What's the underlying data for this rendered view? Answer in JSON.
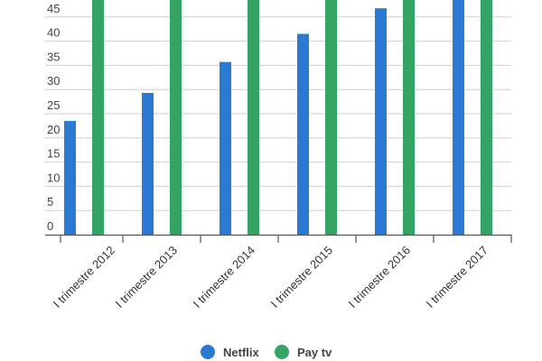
{
  "chart_data": {
    "type": "bar",
    "categories": [
      "I trimestre 2012",
      "I trimestre 2013",
      "I trimestre 2014",
      "I trimestre 2015",
      "I trimestre 2016",
      "I trimestre 2017"
    ],
    "series": [
      {
        "name": "Netflix",
        "color": "#2a7ad4",
        "values": [
          23.5,
          29.3,
          35.7,
          41.5,
          46.8,
          49.5
        ]
      },
      {
        "name": "Pay tv",
        "color": "#34a364",
        "values": [
          50,
          50,
          50,
          50,
          50,
          50
        ]
      }
    ],
    "yticks": [
      0,
      5,
      10,
      15,
      20,
      25,
      30,
      35,
      40,
      45
    ],
    "ylim": [
      0,
      50
    ],
    "grid": true,
    "legend_position": "bottom",
    "title": "",
    "xlabel": "",
    "ylabel": ""
  }
}
